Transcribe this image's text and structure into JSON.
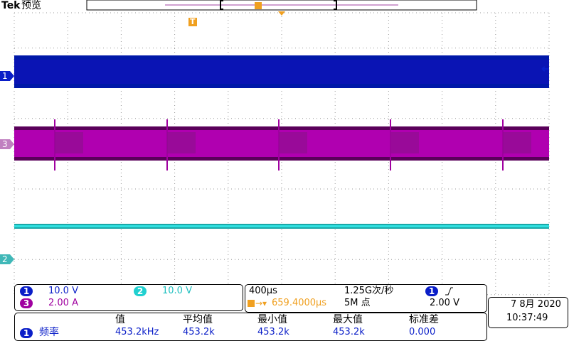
{
  "header": {
    "brand": "Tek",
    "mode": "预览"
  },
  "markers": {
    "ch1": "1",
    "ch3": "3",
    "ch2": "2",
    "trigger": "T"
  },
  "channels": [
    {
      "id": "1",
      "scale": "10.0 V"
    },
    {
      "id": "2",
      "scale": "10.0 V"
    },
    {
      "id": "3",
      "scale": "2.00 A"
    }
  ],
  "timebase": {
    "scale": "400µs",
    "rate": "1.25G次/秒",
    "trigger_source": "1",
    "trigger_position": "659.4000µs",
    "record_length": "5M 点",
    "trigger_level": "2.00 V"
  },
  "datetime": {
    "date": "7 8月 2020",
    "time": "10:37:49"
  },
  "measurements": {
    "headers": [
      "值",
      "平均值",
      "最小值",
      "最大值",
      "标准差"
    ],
    "rows": [
      {
        "source": "1",
        "name": "频率",
        "cells": [
          "453.2kHz",
          "453.2k",
          "453.2k",
          "453.2k",
          "0.000"
        ]
      }
    ]
  }
}
